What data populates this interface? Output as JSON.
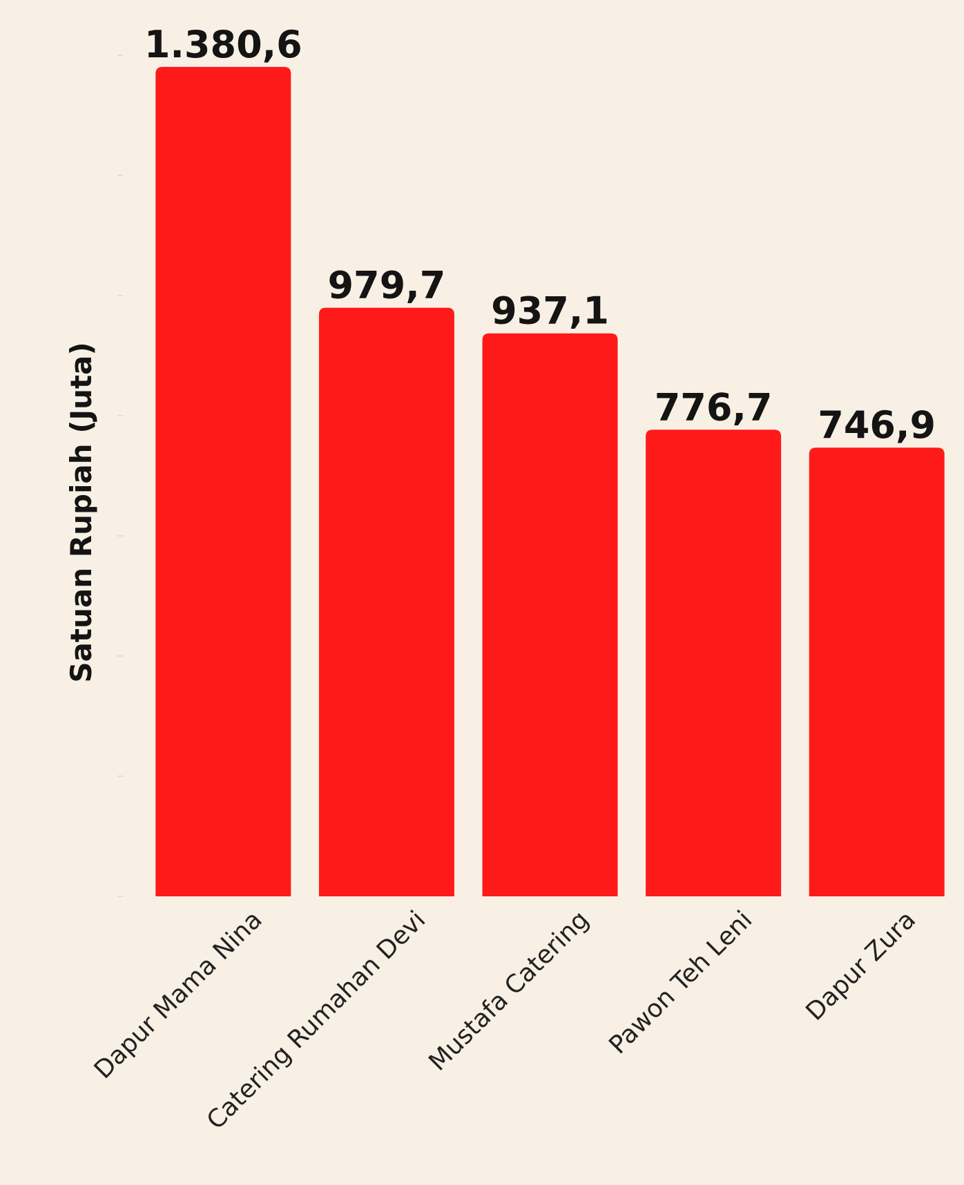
{
  "chart_data": {
    "type": "bar",
    "title": "",
    "xlabel": "",
    "ylabel": "Satuan Rupiah (Juta)",
    "categories": [
      "Dapur Mama Nina",
      "Catering Rumahan Devi",
      "Mustafa Catering",
      "Pawon Teh Leni",
      "Dapur Zura"
    ],
    "values": [
      1380.6,
      979.7,
      937.1,
      776.7,
      746.9
    ],
    "value_labels": [
      "1.380,6",
      "979,7",
      "937,1",
      "776,7",
      "746,9"
    ],
    "ylim": [
      0,
      1400
    ],
    "grid": false,
    "legend": "none",
    "colors": {
      "bar": "#FF1A1A",
      "background": "#F8F0E4",
      "text": "#141414"
    }
  }
}
